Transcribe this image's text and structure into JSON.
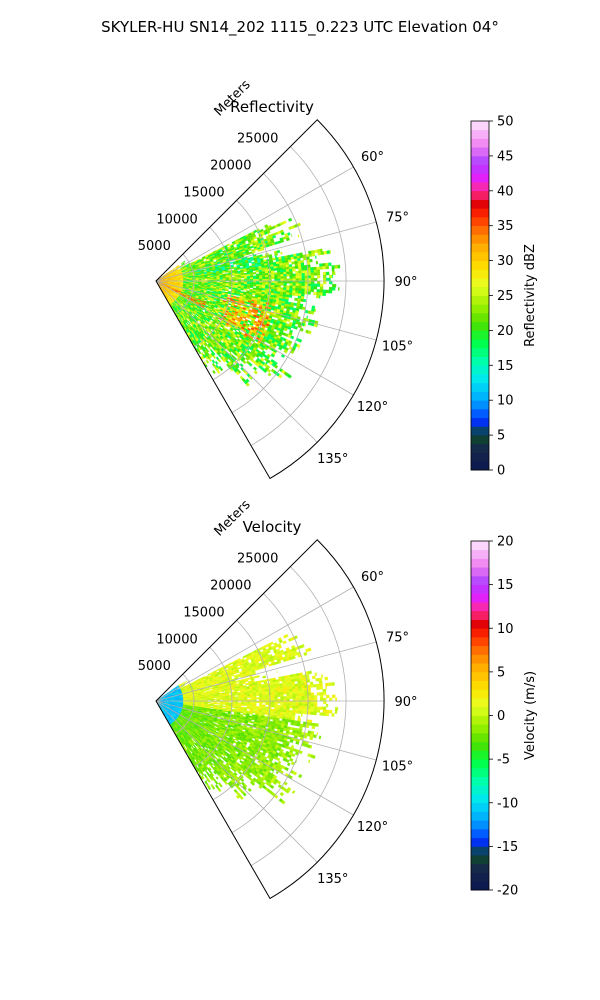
{
  "chart_data": {
    "type": "ppi",
    "suptitle": "SKYLER-HU  SN14_202  1115_0.223 UTC Elevation 04°",
    "range_label": "Meters",
    "grid": true,
    "panels": [
      {
        "title": "Reflectivity",
        "field": "reflectivity",
        "unit_label": "Reflectivity dBZ",
        "azimuth_range": [
          45,
          150
        ],
        "azimuth_ticks": [
          "60°",
          "75°",
          "90°",
          "105°",
          "120°",
          "135°"
        ],
        "range_ticks": [
          "5000",
          "10000",
          "15000",
          "20000",
          "25000"
        ],
        "range_max": 30000,
        "colorbar_range": [
          0,
          50
        ],
        "colorbar_ticks": [
          "0",
          "5",
          "10",
          "15",
          "20",
          "25",
          "30",
          "35",
          "40",
          "45",
          "50"
        ],
        "typical_value": 22,
        "near_range_value": 32,
        "hotspot_value": 36
      },
      {
        "title": "Velocity",
        "field": "velocity",
        "unit_label": "Velocity (m/s)",
        "azimuth_range": [
          45,
          150
        ],
        "azimuth_ticks": [
          "60°",
          "75°",
          "90°",
          "105°",
          "120°",
          "135°"
        ],
        "range_ticks": [
          "5000",
          "10000",
          "15000",
          "20000",
          "25000"
        ],
        "range_max": 30000,
        "colorbar_range": [
          -20,
          20
        ],
        "colorbar_ticks": [
          "-20",
          "-15",
          "-10",
          "-5",
          "0",
          "5",
          "10",
          "15",
          "20"
        ],
        "near_range_value": -11,
        "north_sector_value": 1,
        "south_sector_value": -3
      }
    ]
  }
}
